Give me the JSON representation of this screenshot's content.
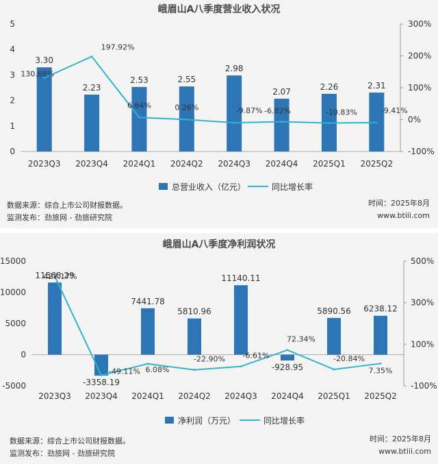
{
  "chart_data": [
    {
      "type": "bar",
      "title": "峨眉山A八季度营业收入状况",
      "categories": [
        "2023Q3",
        "2023Q4",
        "2024Q1",
        "2024Q2",
        "2024Q3",
        "2024Q4",
        "2025Q1",
        "2025Q2"
      ],
      "series": [
        {
          "name": "总营业收入（亿元）",
          "type": "bar",
          "axis": "left",
          "values": [
            3.3,
            2.23,
            2.53,
            2.55,
            2.98,
            2.07,
            2.26,
            2.31
          ],
          "labels": [
            "3.30",
            "2.23",
            "2.53",
            "2.55",
            "2.98",
            "2.07",
            "2.26",
            "2.31"
          ]
        },
        {
          "name": "同比增长率",
          "type": "line",
          "axis": "right",
          "values": [
            130.68,
            197.92,
            6.64,
            0.26,
            -9.87,
            -6.82,
            -10.83,
            -9.41
          ],
          "labels": [
            "130.68%",
            "197.92%",
            "6.64%",
            "0.26%",
            "-9.87%",
            "-6.82%",
            "-10.83%",
            "-9.41%"
          ]
        }
      ],
      "ylim": [
        0,
        5
      ],
      "yticks": [
        "0",
        "1",
        "2",
        "3",
        "4",
        "5"
      ],
      "y2lim": [
        -100,
        300
      ],
      "y2ticks": [
        "-100%",
        "0%",
        "100%",
        "200%",
        "300%"
      ],
      "legend": "bottom-center",
      "colors": {
        "bar": "#2e75b6",
        "line": "#2fb3cf"
      },
      "source": "数据来源：综合上市公司财报数据。",
      "publisher": "监测发布：劲旅网 - 劲旅研究院",
      "date": "时间：2025年8月",
      "site": "www.btiii.com"
    },
    {
      "type": "bar",
      "title": "峨眉山A八季度净利润状况",
      "categories": [
        "2023Q3",
        "2023Q4",
        "2024Q1",
        "2024Q2",
        "2024Q3",
        "2024Q4",
        "2025Q1",
        "2025Q2"
      ],
      "series": [
        {
          "name": "净利润（万元）",
          "type": "bar",
          "axis": "left",
          "values": [
            11568.29,
            -3358.19,
            7441.78,
            5810.96,
            11140.11,
            -928.95,
            5890.56,
            6238.12
          ],
          "labels": [
            "11568.29",
            "-3358.19",
            "7441.78",
            "5810.96",
            "11140.11",
            "-928.95",
            "5890.56",
            "6238.12"
          ]
        },
        {
          "name": "同比增长率",
          "type": "line",
          "axis": "right",
          "values": [
            427.17,
            -49.11,
            6.08,
            -22.9,
            -6.61,
            72.34,
            -20.84,
            7.35
          ],
          "labels": [
            "427.17%",
            "-49.11%",
            "6.08%",
            "-22.90%",
            "-6.61%",
            "72.34%",
            "-20.84%",
            "7.35%"
          ]
        }
      ],
      "ylim": [
        -5000,
        15000
      ],
      "yticks": [
        "-5000",
        "0",
        "5000",
        "10000",
        "15000"
      ],
      "y2lim": [
        -100,
        500
      ],
      "y2ticks": [
        "-100%",
        "100%",
        "300%",
        "500%"
      ],
      "legend": "bottom-center",
      "colors": {
        "bar": "#2e75b6",
        "line": "#2fb3cf"
      },
      "source": "数据来源：综合上市公司财报数据。",
      "publisher": "监测发布：劲旅网 - 劲旅研究院",
      "date": "时间：2025年8月",
      "site": "www.btiii.com"
    }
  ]
}
